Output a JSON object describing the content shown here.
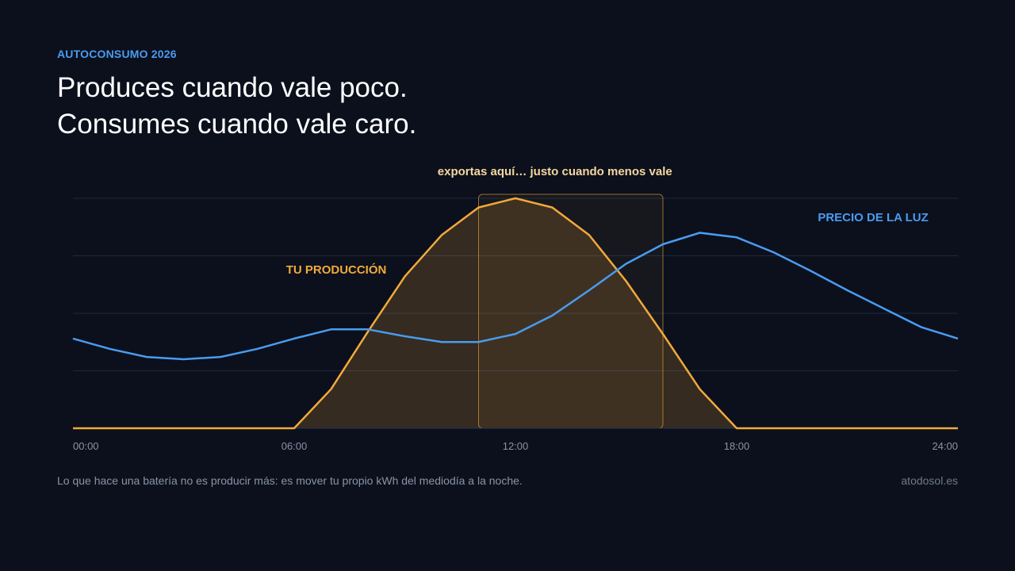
{
  "header": {
    "eyebrow": "AUTOCONSUMO 2026",
    "headline_line1": "Produces cuando vale poco.",
    "headline_line2": "Consumes cuando vale caro."
  },
  "footer": {
    "note": "Lo que hace una batería no es producir más: es mover tu propio kWh del mediodía a la noche.",
    "credit": "atodosol.es"
  },
  "colors": {
    "background": "#0b101c",
    "production": "#f2a93b",
    "price": "#4a9bf0",
    "grid": "#1e2842",
    "annotation": "#f5d79e",
    "axis_text": "#8a93a6"
  },
  "chart_data": {
    "type": "line",
    "x_unit": "hour",
    "xlim": [
      0,
      24
    ],
    "ylim": [
      0,
      100
    ],
    "grid": true,
    "x_ticks": [
      {
        "value": 0,
        "label": "00:00"
      },
      {
        "value": 6,
        "label": "06:00"
      },
      {
        "value": 12,
        "label": "12:00"
      },
      {
        "value": 18,
        "label": "18:00"
      },
      {
        "value": 24,
        "label": "24:00"
      }
    ],
    "y_gridlines": [
      0,
      25,
      50,
      75,
      100
    ],
    "series": [
      {
        "name": "TU PRODUCCIÓN",
        "style": "area",
        "color": "#f2a93b",
        "x": [
          0,
          6,
          7,
          8,
          9,
          10,
          11,
          12,
          13,
          14,
          15,
          16,
          17,
          18,
          24
        ],
        "y": [
          0,
          0,
          17,
          42,
          66,
          84,
          96,
          100,
          96,
          84,
          64,
          41,
          17,
          0,
          0
        ]
      },
      {
        "name": "PRECIO DE LA LUZ",
        "style": "line",
        "color": "#4a9bf0",
        "x": [
          0,
          1,
          2,
          3,
          4,
          5,
          6,
          7,
          8,
          9,
          10,
          11,
          12,
          13,
          14,
          15,
          16,
          17,
          18,
          19,
          20,
          21,
          22,
          23,
          24
        ],
        "y": [
          39,
          34.5,
          31,
          30,
          31,
          34.5,
          39,
          43,
          43,
          40,
          37.5,
          37.5,
          41,
          49,
          60,
          71.5,
          80,
          85,
          83,
          76.5,
          68.5,
          60,
          52,
          44,
          39
        ]
      }
    ],
    "highlight": {
      "x_start": 11,
      "x_end": 16,
      "label": "exportas aquí… justo cuando menos vale"
    }
  }
}
